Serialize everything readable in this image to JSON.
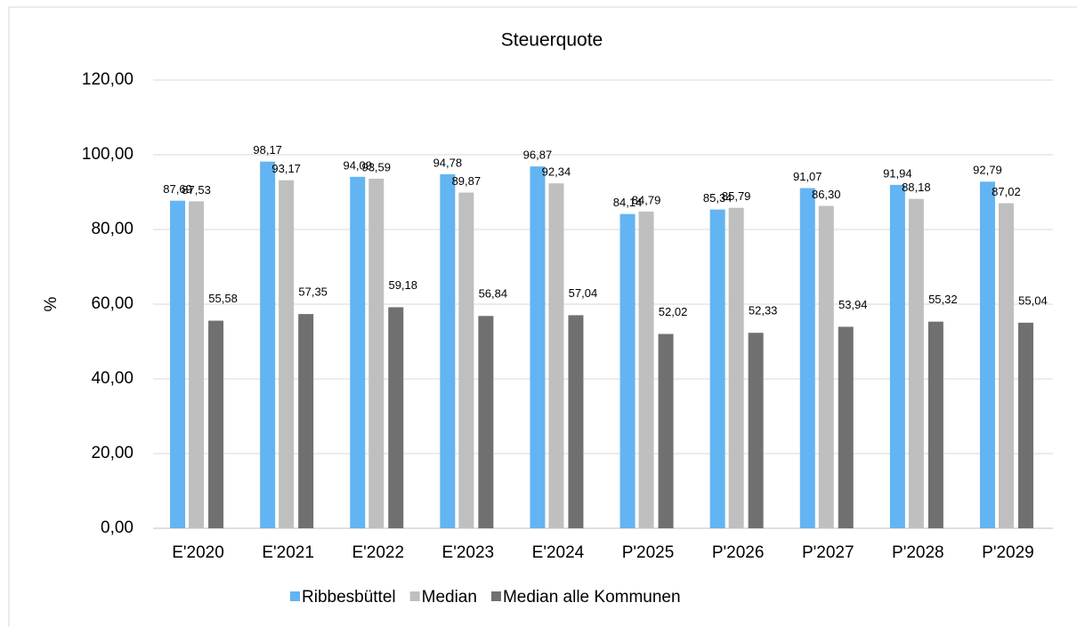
{
  "chart_data": {
    "type": "bar",
    "title": "Steuerquote",
    "y_label": "%",
    "categories": [
      "E'2020",
      "E'2021",
      "E'2022",
      "E'2023",
      "E'2024",
      "P'2025",
      "P'2026",
      "P'2027",
      "P'2028",
      "P'2029"
    ],
    "series": [
      {
        "name": "Ribbesbüttel",
        "color": "#63b4f2",
        "values": [
          87.69,
          98.17,
          94.09,
          94.78,
          96.87,
          84.14,
          85.34,
          91.07,
          91.94,
          92.79
        ],
        "value_labels": [
          "87,69",
          "98,17",
          "94,09",
          "94,78",
          "96,87",
          "84,14",
          "85,34",
          "91,07",
          "91,94",
          "92,79"
        ]
      },
      {
        "name": "Median",
        "color": "#bfbfbf",
        "values": [
          87.53,
          93.17,
          93.59,
          89.87,
          92.34,
          84.79,
          85.79,
          86.3,
          88.18,
          87.02
        ],
        "value_labels": [
          "87,53",
          "93,17",
          "93,59",
          "89,87",
          "92,34",
          "84,79",
          "85,79",
          "86,30",
          "88,18",
          "87,02"
        ]
      },
      {
        "name": "Median alle Kommunen",
        "color": "#707070",
        "values": [
          55.58,
          57.35,
          59.18,
          56.84,
          57.04,
          52.02,
          52.33,
          53.94,
          55.32,
          55.04
        ],
        "value_labels": [
          "55,58",
          "57,35",
          "59,18",
          "56,84",
          "57,04",
          "52,02",
          "52,33",
          "53,94",
          "55,32",
          "55,04"
        ]
      }
    ],
    "ylim": [
      0,
      120
    ],
    "yticks": [
      {
        "value": 0,
        "label": "0,00"
      },
      {
        "value": 20,
        "label": "20,00"
      },
      {
        "value": 40,
        "label": "40,00"
      },
      {
        "value": 60,
        "label": "60,00"
      },
      {
        "value": 80,
        "label": "80,00"
      },
      {
        "value": 100,
        "label": "100,00"
      },
      {
        "value": 120,
        "label": "120,00"
      }
    ],
    "grid": true,
    "legend": "bottom"
  }
}
